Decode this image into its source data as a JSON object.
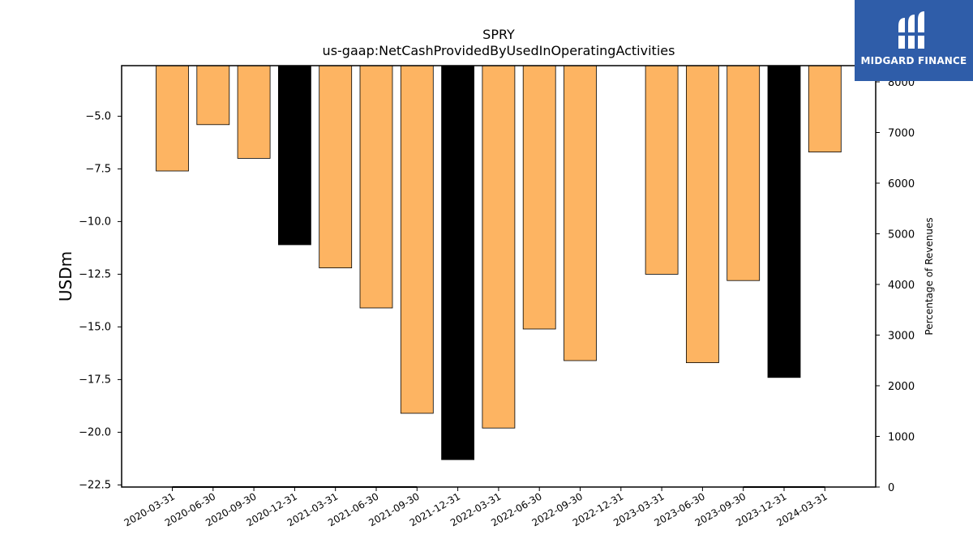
{
  "chart_data": {
    "type": "bar",
    "title": "SPRY",
    "subtitle": "us-gaap:NetCashProvidedByUsedInOperatingActivities",
    "ylabel": "USDm",
    "y2label": "Percentage of Revenues",
    "categories": [
      "2020-03-31",
      "2020-06-30",
      "2020-09-30",
      "2020-12-31",
      "2021-03-31",
      "2021-06-30",
      "2021-09-30",
      "2021-12-31",
      "2022-03-31",
      "2022-06-30",
      "2022-09-30",
      "2022-12-31",
      "2023-03-31",
      "2023-06-30",
      "2023-09-30",
      "2023-12-31",
      "2024-03-31"
    ],
    "values": [
      -7.6,
      -5.4,
      -7.0,
      -11.1,
      -12.2,
      -14.1,
      -19.1,
      -21.3,
      -19.8,
      -15.1,
      -16.6,
      null,
      -12.5,
      -16.7,
      -12.8,
      -17.4,
      -6.7
    ],
    "bar_colors": [
      "#fdb462",
      "#fdb462",
      "#fdb462",
      "#000000",
      "#fdb462",
      "#fdb462",
      "#fdb462",
      "#000000",
      "#fdb462",
      "#fdb462",
      "#fdb462",
      "#fdb462",
      "#fdb462",
      "#fdb462",
      "#fdb462",
      "#000000",
      "#fdb462"
    ],
    "ylim": [
      -22.6,
      -2.6
    ],
    "yticks": [
      -5.0,
      -7.5,
      -10.0,
      -12.5,
      -15.0,
      -17.5,
      -20.0,
      -22.5
    ],
    "y2lim": [
      0,
      8320
    ],
    "y2ticks": [
      0,
      1000,
      2000,
      3000,
      4000,
      5000,
      6000,
      7000,
      8000
    ],
    "percentage_series": [
      0,
      0,
      0,
      0,
      0,
      0,
      0,
      null,
      null,
      null,
      null,
      null,
      null,
      null,
      0,
      0,
      0
    ],
    "grid": false
  },
  "logo": {
    "text": "MIDGARD FINANCE",
    "color": "#2f5da9"
  }
}
